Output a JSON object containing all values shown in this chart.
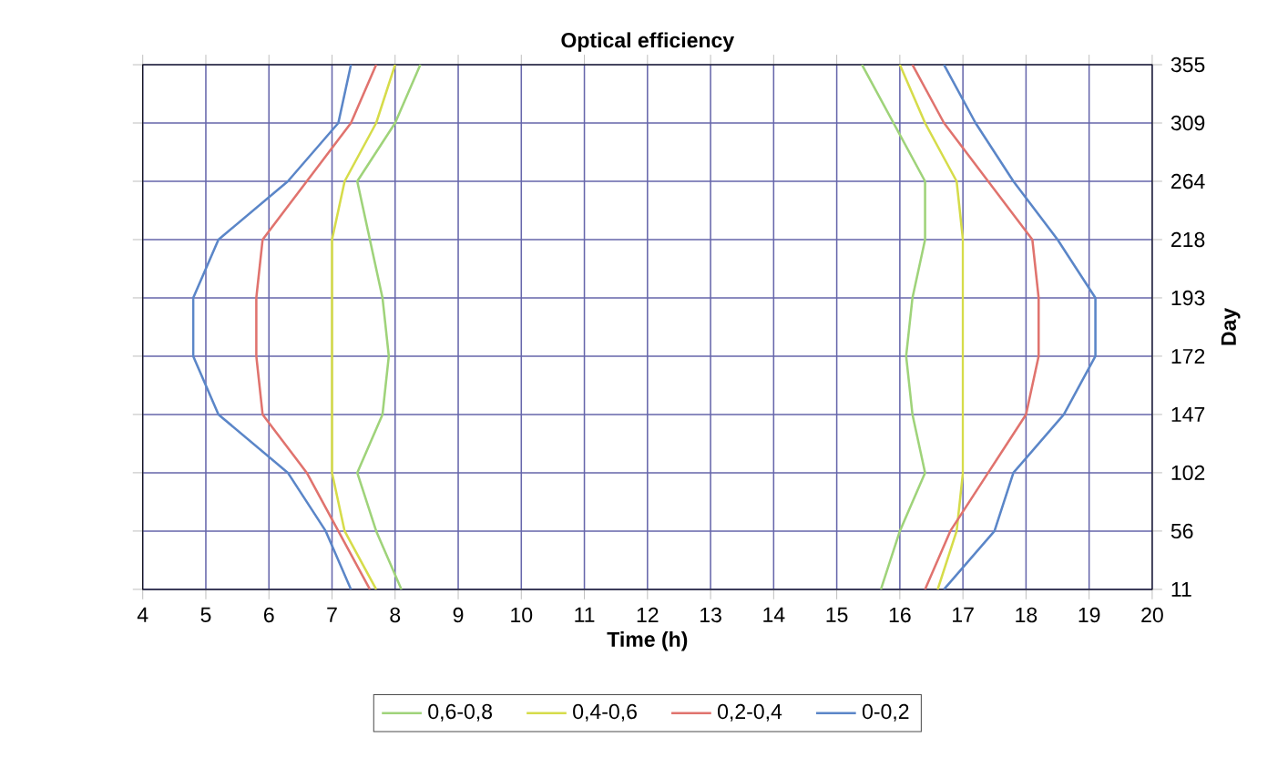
{
  "chart_data": {
    "type": "line",
    "orientation": "horizontal",
    "title": "Optical efficiency",
    "xlabel": "Time (h)",
    "ylabel": "Day",
    "categories": [
      "355",
      "309",
      "264",
      "218",
      "193",
      "172",
      "147",
      "102",
      "56",
      "11"
    ],
    "xlim": [
      4,
      20
    ],
    "xticks": [
      4,
      5,
      6,
      7,
      8,
      9,
      10,
      11,
      12,
      13,
      14,
      15,
      16,
      17,
      18,
      19,
      20
    ],
    "grid": true,
    "legend": "bottom",
    "series": [
      {
        "name": "0,6-0,8",
        "color": "#9fd37a",
        "values": [
          8.4,
          8.0,
          7.4,
          7.6,
          7.8,
          7.9,
          7.8,
          7.4,
          7.7,
          8.1
        ]
      },
      {
        "name": "0,4-0,6",
        "color": "#d6dc4a",
        "values": [
          8.0,
          7.7,
          7.2,
          7.0,
          7.0,
          7.0,
          7.0,
          7.0,
          7.2,
          7.7
        ]
      },
      {
        "name": "0,2-0,4",
        "color": "#e0736e",
        "values": [
          7.7,
          7.3,
          6.6,
          5.9,
          5.8,
          5.8,
          5.9,
          6.6,
          7.1,
          7.6
        ]
      },
      {
        "name": "0-0,2",
        "color": "#5b86c8",
        "values": [
          7.3,
          7.1,
          6.3,
          5.2,
          4.8,
          4.8,
          5.2,
          6.3,
          6.9,
          7.3
        ]
      },
      {
        "color": "#9fd37a",
        "values": [
          15.4,
          15.9,
          16.4,
          16.4,
          16.2,
          16.1,
          16.2,
          16.4,
          16.0,
          15.7
        ]
      },
      {
        "color": "#d6dc4a",
        "values": [
          16.0,
          16.4,
          16.9,
          17.0,
          17.0,
          17.0,
          17.0,
          17.0,
          16.9,
          16.6
        ]
      },
      {
        "color": "#e0736e",
        "values": [
          16.2,
          16.7,
          17.4,
          18.1,
          18.2,
          18.2,
          18.0,
          17.4,
          16.8,
          16.4
        ]
      },
      {
        "color": "#5b86c8",
        "values": [
          16.7,
          17.2,
          17.8,
          18.5,
          19.1,
          19.1,
          18.6,
          17.8,
          17.5,
          16.7
        ]
      }
    ]
  }
}
